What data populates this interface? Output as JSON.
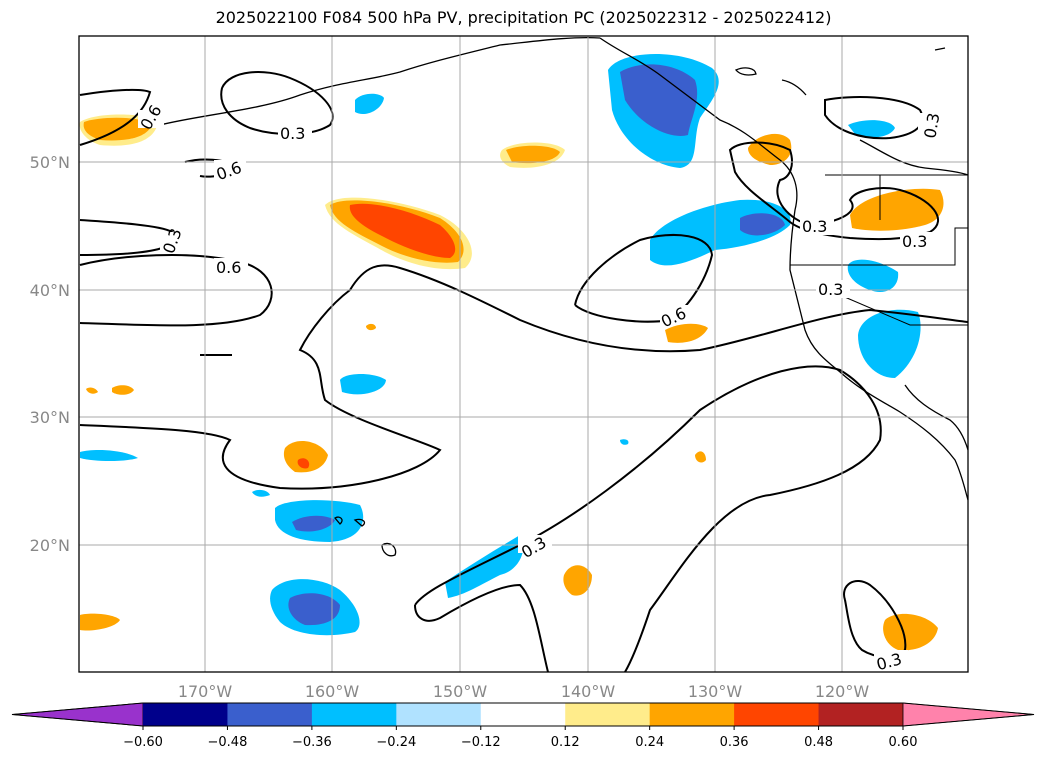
{
  "title": "2025022100 F084 500 hPa PV, precipitation PC (2025022312 - 2025022412)",
  "map": {
    "lon_ticks": [
      "170°W",
      "160°W",
      "150°W",
      "140°W",
      "130°W",
      "120°W"
    ],
    "lat_ticks": [
      "50°N",
      "40°N",
      "30°N",
      "20°N"
    ],
    "lon_range": [
      -180,
      -110
    ],
    "lat_range": [
      10,
      60
    ]
  },
  "contour_labels": [
    "0.6",
    "0.3",
    "0.6",
    "0.3",
    "0.6",
    "0.3",
    "0.3",
    "0.3",
    "0.6",
    "0.3",
    "0.3",
    "0.3"
  ],
  "colorbar": {
    "ticks": [
      "−0.60",
      "−0.48",
      "−0.36",
      "−0.24",
      "−0.12",
      "0.12",
      "0.24",
      "0.36",
      "0.48",
      "0.60"
    ],
    "colors": [
      "#9932cc",
      "#00008b",
      "#3a5fcd",
      "#00bfff",
      "#b0e2ff",
      "#ffffff",
      "#ffec8b",
      "#ffa500",
      "#ff4500",
      "#b22222",
      "#ff82ab"
    ]
  }
}
